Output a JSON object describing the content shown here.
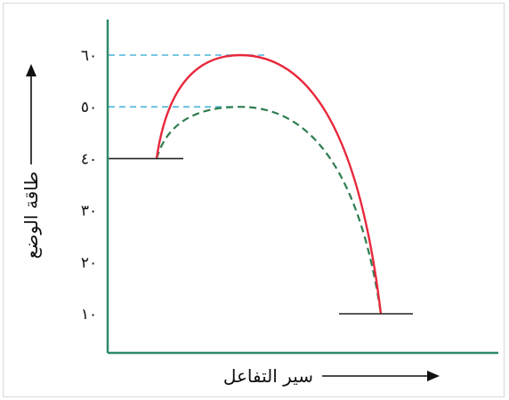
{
  "chart_data": {
    "type": "line",
    "ylabel": "طاقة الوضع",
    "xlabel": "سير التفاعل",
    "y_ticks": [
      {
        "value": 60,
        "label": "٦٠"
      },
      {
        "value": 50,
        "label": "٥٠"
      },
      {
        "value": 40,
        "label": "٤٠"
      },
      {
        "value": 30,
        "label": "٣٠"
      },
      {
        "value": 20,
        "label": "٢٠"
      },
      {
        "value": 10,
        "label": "١٠"
      }
    ],
    "ylim": [
      3,
      64
    ],
    "reactant_energy": 40,
    "product_energy": 10,
    "series": [
      {
        "peak": 60,
        "color": "#e8283c",
        "dashed": false
      },
      {
        "peak": 50,
        "color": "#2e7d4f",
        "dashed": true
      }
    ],
    "guide_color": "#4fb4dc",
    "axis_color": "#2e8b6a"
  }
}
